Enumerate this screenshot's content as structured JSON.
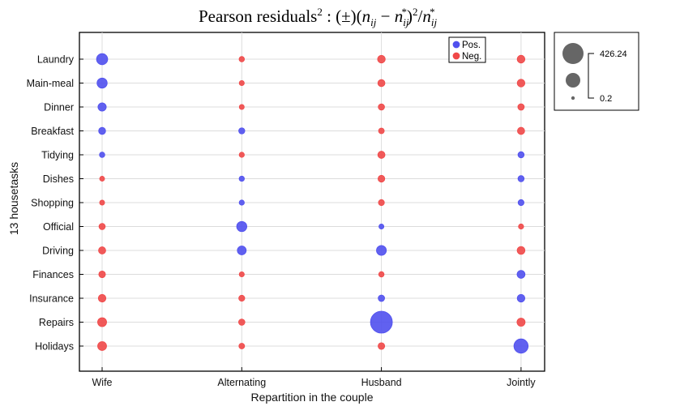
{
  "chart_data": {
    "type": "scatter",
    "title": "Pearson residuals² : (±)(n_ij − n*_ij)²/n*_ij",
    "xlabel": "Repartition in the couple",
    "ylabel": "13 housetasks",
    "categories_x": [
      "Wife",
      "Alternating",
      "Husband",
      "Jointly"
    ],
    "categories_y": [
      "Laundry",
      "Main-meal",
      "Dinner",
      "Breakfast",
      "Tidying",
      "Dishes",
      "Shopping",
      "Official",
      "Driving",
      "Finances",
      "Insurance",
      "Repairs",
      "Holidays"
    ],
    "grid": true,
    "size_legend": {
      "max_label": "426.24",
      "min_label": "0.2",
      "max": 426.24,
      "min": 0.2,
      "position": "outside-right"
    },
    "color_legend": {
      "position": "top-right",
      "entries": [
        {
          "label": "Pos.",
          "color": "#5050ee"
        },
        {
          "label": "Neg.",
          "color": "#f04848"
        }
      ]
    },
    "colors": {
      "positive": "#5050ee",
      "negative": "#f04848"
    },
    "series": [
      {
        "x": "Wife",
        "values": [
          78.0,
          60.0,
          32.0,
          18.0,
          6.0,
          3.8,
          4.0,
          12.0,
          20.0,
          15.0,
          24.0,
          41.0,
          40.0
        ],
        "signs": [
          1,
          1,
          1,
          1,
          1,
          -1,
          -1,
          -1,
          -1,
          -1,
          -1,
          -1,
          -1
        ]
      },
      {
        "x": "Alternating",
        "values": [
          6.0,
          4.5,
          4.0,
          10.5,
          5.0,
          5.5,
          5.0,
          60.0,
          40.0,
          4.5,
          10.0,
          12.0,
          8.0
        ],
        "signs": [
          -1,
          -1,
          -1,
          1,
          -1,
          1,
          1,
          1,
          1,
          -1,
          -1,
          -1,
          -1
        ]
      },
      {
        "x": "Husband",
        "values": [
          25.0,
          19.0,
          12.0,
          8.0,
          20.0,
          16.0,
          9.5,
          4.0,
          55.0,
          6.0,
          13.0,
          426.24,
          15.0
        ],
        "signs": [
          -1,
          -1,
          -1,
          -1,
          -1,
          -1,
          -1,
          1,
          1,
          -1,
          1,
          1,
          -1
        ]
      },
      {
        "x": "Jointly",
        "values": [
          26.0,
          25.0,
          13.0,
          20.0,
          11.0,
          11.0,
          9.5,
          5.0,
          27.0,
          28.0,
          25.0,
          30.0,
          150.0
        ],
        "signs": [
          -1,
          -1,
          -1,
          -1,
          1,
          1,
          1,
          -1,
          -1,
          1,
          1,
          -1,
          1
        ]
      }
    ]
  }
}
